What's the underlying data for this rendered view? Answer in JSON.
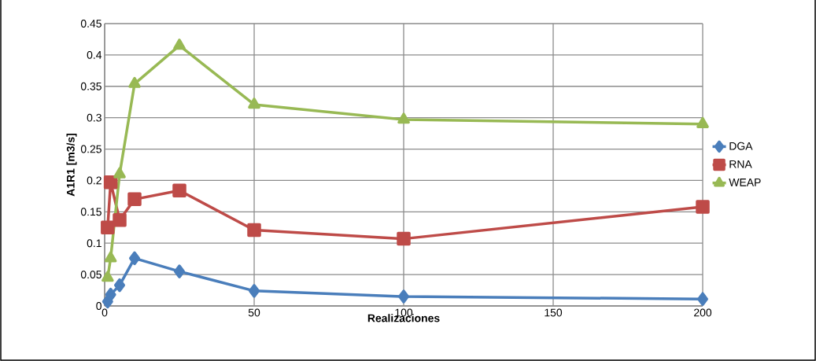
{
  "chart_data": {
    "type": "line",
    "xlabel": "Realizaciones",
    "ylabel": "A1R1 [m3/s]",
    "x": [
      1,
      2,
      5,
      10,
      25,
      50,
      100,
      200
    ],
    "series": [
      {
        "name": "DGA",
        "color": "#4a7ebb",
        "marker": "diamond",
        "values": [
          0.007,
          0.018,
          0.033,
          0.076,
          0.055,
          0.024,
          0.015,
          0.011
        ]
      },
      {
        "name": "RNA",
        "color": "#be4b48",
        "marker": "square",
        "values": [
          0.125,
          0.197,
          0.137,
          0.17,
          0.184,
          0.121,
          0.107,
          0.158
        ]
      },
      {
        "name": "WEAP",
        "color": "#98b954",
        "marker": "triangle",
        "values": [
          0.045,
          0.076,
          0.21,
          0.354,
          0.415,
          0.321,
          0.297,
          0.29
        ]
      }
    ],
    "xlim": [
      0,
      200
    ],
    "xticks": [
      0,
      50,
      100,
      150,
      200
    ],
    "ylim": [
      0,
      0.45
    ],
    "yticks": [
      0,
      0.05,
      0.1,
      0.15,
      0.2,
      0.25,
      0.3,
      0.35,
      0.4,
      0.45
    ],
    "grid": true,
    "legend": "right",
    "line_style": "solid"
  }
}
